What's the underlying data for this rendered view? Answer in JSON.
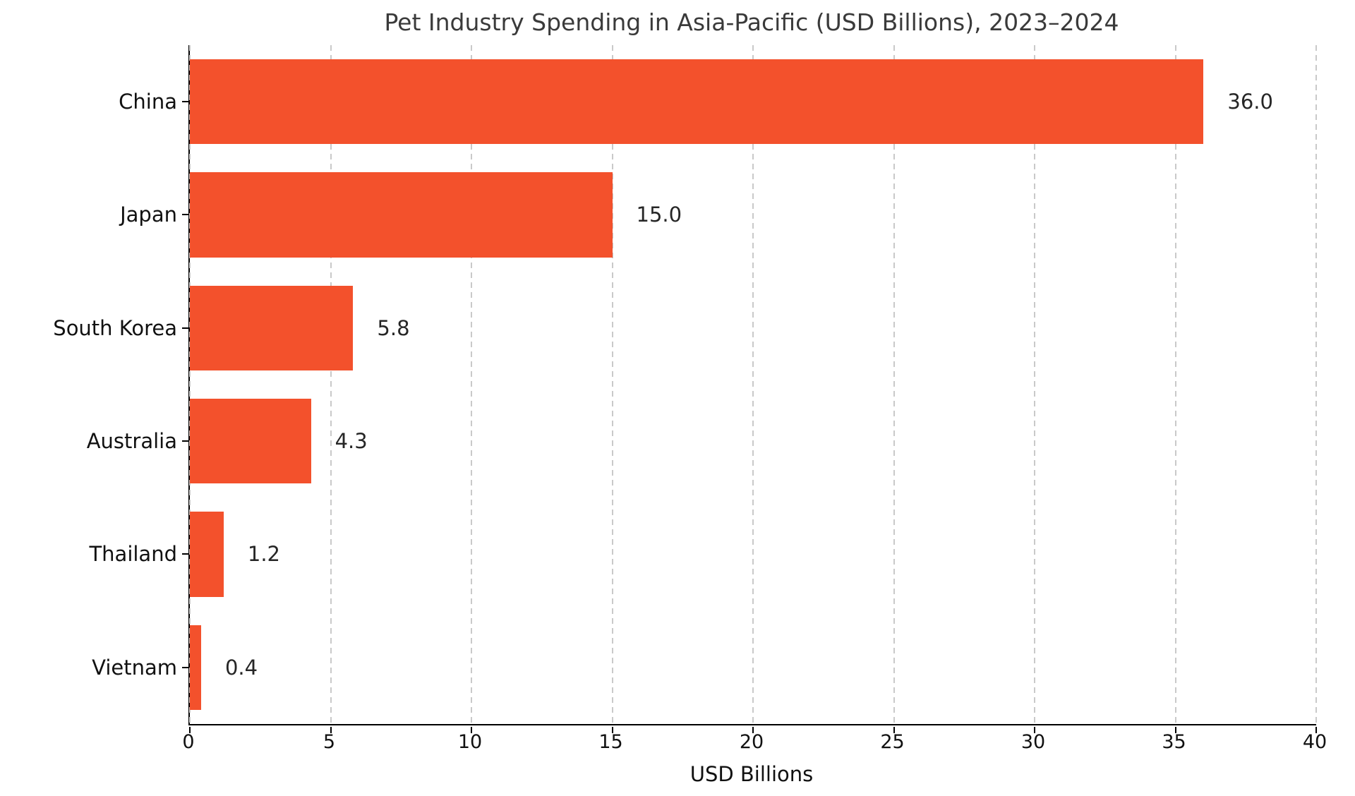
{
  "chart_data": {
    "type": "bar",
    "orientation": "horizontal",
    "title": "Pet Industry Spending in Asia-Pacific (USD Billions), 2023–2024",
    "xlabel": "USD Billions",
    "categories": [
      "China",
      "Japan",
      "South Korea",
      "Australia",
      "Thailand",
      "Vietnam"
    ],
    "values": [
      36.0,
      15.0,
      5.8,
      4.3,
      1.2,
      0.4
    ],
    "value_labels": [
      "36.0",
      "15.0",
      "5.8",
      "4.3",
      "1.2",
      "0.4"
    ],
    "xlim": [
      0,
      40
    ],
    "xticks": [
      0,
      5,
      10,
      15,
      20,
      25,
      30,
      35,
      40
    ],
    "bar_color": "#f3512c",
    "grid": "vertical-dashed",
    "legend": "none",
    "background": "#ffffff"
  }
}
